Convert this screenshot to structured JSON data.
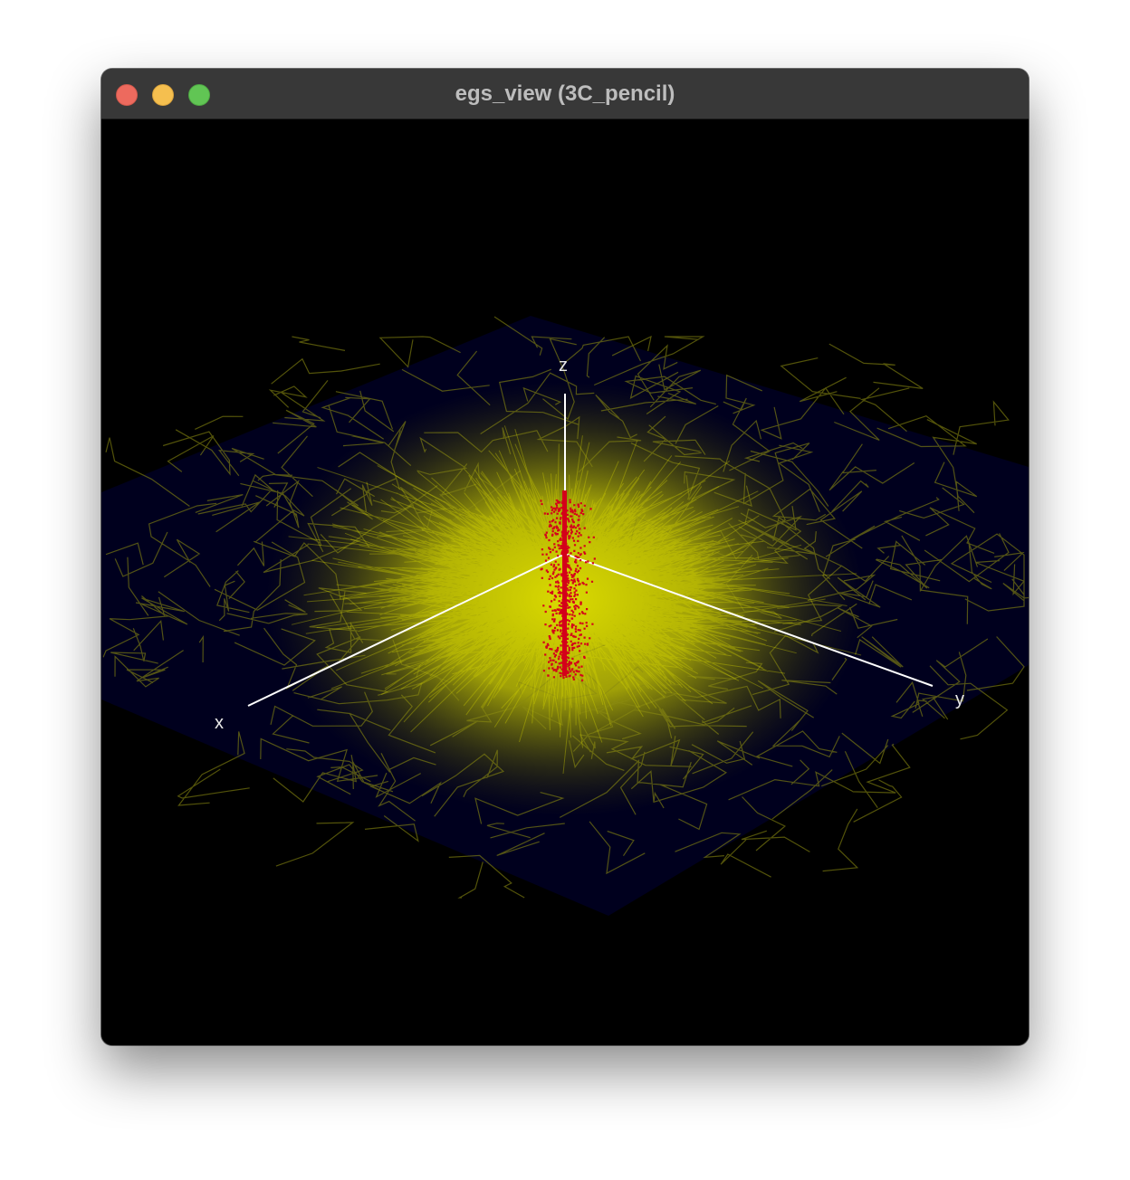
{
  "window": {
    "title": "egs_view (3C_pencil)"
  },
  "viewport": {
    "axis_labels": {
      "x": "x",
      "y": "y",
      "z": "z"
    },
    "colors": {
      "background": "#000000",
      "ground_plane": "#00001e",
      "photon_tracks": "#d9d900",
      "electron_tracks": "#d4001a",
      "axes": "#ffffff"
    }
  }
}
